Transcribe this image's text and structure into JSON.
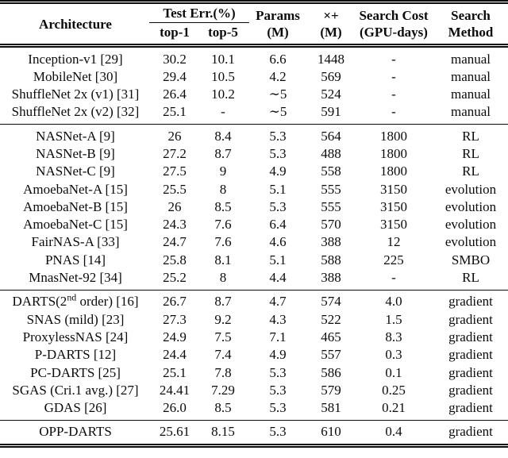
{
  "header": {
    "architecture": "Architecture",
    "test_err_group": "Test Err.(%)",
    "sub_top1": "top-1",
    "sub_top5": "top-5",
    "params": [
      "Params",
      "(M)"
    ],
    "multadds": [
      "×+",
      "(M)"
    ],
    "search_cost": [
      "Search Cost",
      "(GPU-days)"
    ],
    "search_method": [
      "Search",
      "Method"
    ]
  },
  "sections": [
    {
      "name": "manual-architectures",
      "rows": [
        [
          "Inception-v1 [29]",
          "30.2",
          "10.1",
          "6.6",
          "1448",
          "-",
          "manual"
        ],
        [
          "MobileNet [30]",
          "29.4",
          "10.5",
          "4.2",
          "569",
          "-",
          "manual"
        ],
        [
          "ShuffleNet 2x (v1) [31]",
          "26.4",
          "10.2",
          "∼5",
          "524",
          "-",
          "manual"
        ],
        [
          "ShuffleNet 2x (v2) [32]",
          "25.1",
          "-",
          "∼5",
          "591",
          "-",
          "manual"
        ]
      ]
    },
    {
      "name": "rl-evolution-smbo",
      "rows": [
        [
          "NASNet-A [9]",
          "26",
          "8.4",
          "5.3",
          "564",
          "1800",
          "RL"
        ],
        [
          "NASNet-B [9]",
          "27.2",
          "8.7",
          "5.3",
          "488",
          "1800",
          "RL"
        ],
        [
          "NASNet-C [9]",
          "27.5",
          "9",
          "4.9",
          "558",
          "1800",
          "RL"
        ],
        [
          "AmoebaNet-A [15]",
          "25.5",
          "8",
          "5.1",
          "555",
          "3150",
          "evolution"
        ],
        [
          "AmoebaNet-B [15]",
          "26",
          "8.5",
          "5.3",
          "555",
          "3150",
          "evolution"
        ],
        [
          "AmoebaNet-C [15]",
          "24.3",
          "7.6",
          "6.4",
          "570",
          "3150",
          "evolution"
        ],
        [
          "FairNAS-A [33]",
          "24.7",
          "7.6",
          "4.6",
          "388",
          "12",
          "evolution"
        ],
        [
          "PNAS [14]",
          "25.8",
          "8.1",
          "5.1",
          "588",
          "225",
          "SMBO"
        ],
        [
          "MnasNet-92 [34]",
          "25.2",
          "8",
          "4.4",
          "388",
          "-",
          "RL"
        ]
      ]
    },
    {
      "name": "gradient-methods",
      "rows": [
        [
          [
            "DARTS(2",
            {
              "sup": "nd"
            },
            " order) [16]"
          ],
          "26.7",
          "8.7",
          "4.7",
          "574",
          "4.0",
          "gradient"
        ],
        [
          "SNAS (mild) [23]",
          "27.3",
          "9.2",
          "4.3",
          "522",
          "1.5",
          "gradient"
        ],
        [
          "ProxylessNAS [24]",
          "24.9",
          "7.5",
          "7.1",
          "465",
          "8.3",
          "gradient"
        ],
        [
          "P-DARTS [12]",
          "24.4",
          "7.4",
          "4.9",
          "557",
          "0.3",
          "gradient"
        ],
        [
          "PC-DARTS [25]",
          "25.1",
          "7.8",
          "5.3",
          "586",
          "0.1",
          "gradient"
        ],
        [
          "SGAS (Cri.1 avg.) [27]",
          "24.41",
          "7.29",
          "5.3",
          "579",
          "0.25",
          "gradient"
        ],
        [
          "GDAS [26]",
          "26.0",
          "8.5",
          "5.3",
          "581",
          "0.21",
          "gradient"
        ]
      ]
    },
    {
      "name": "ours",
      "rows": [
        [
          "OPP-DARTS",
          "25.61",
          "8.15",
          "5.3",
          "610",
          "0.4",
          "gradient"
        ]
      ]
    }
  ]
}
